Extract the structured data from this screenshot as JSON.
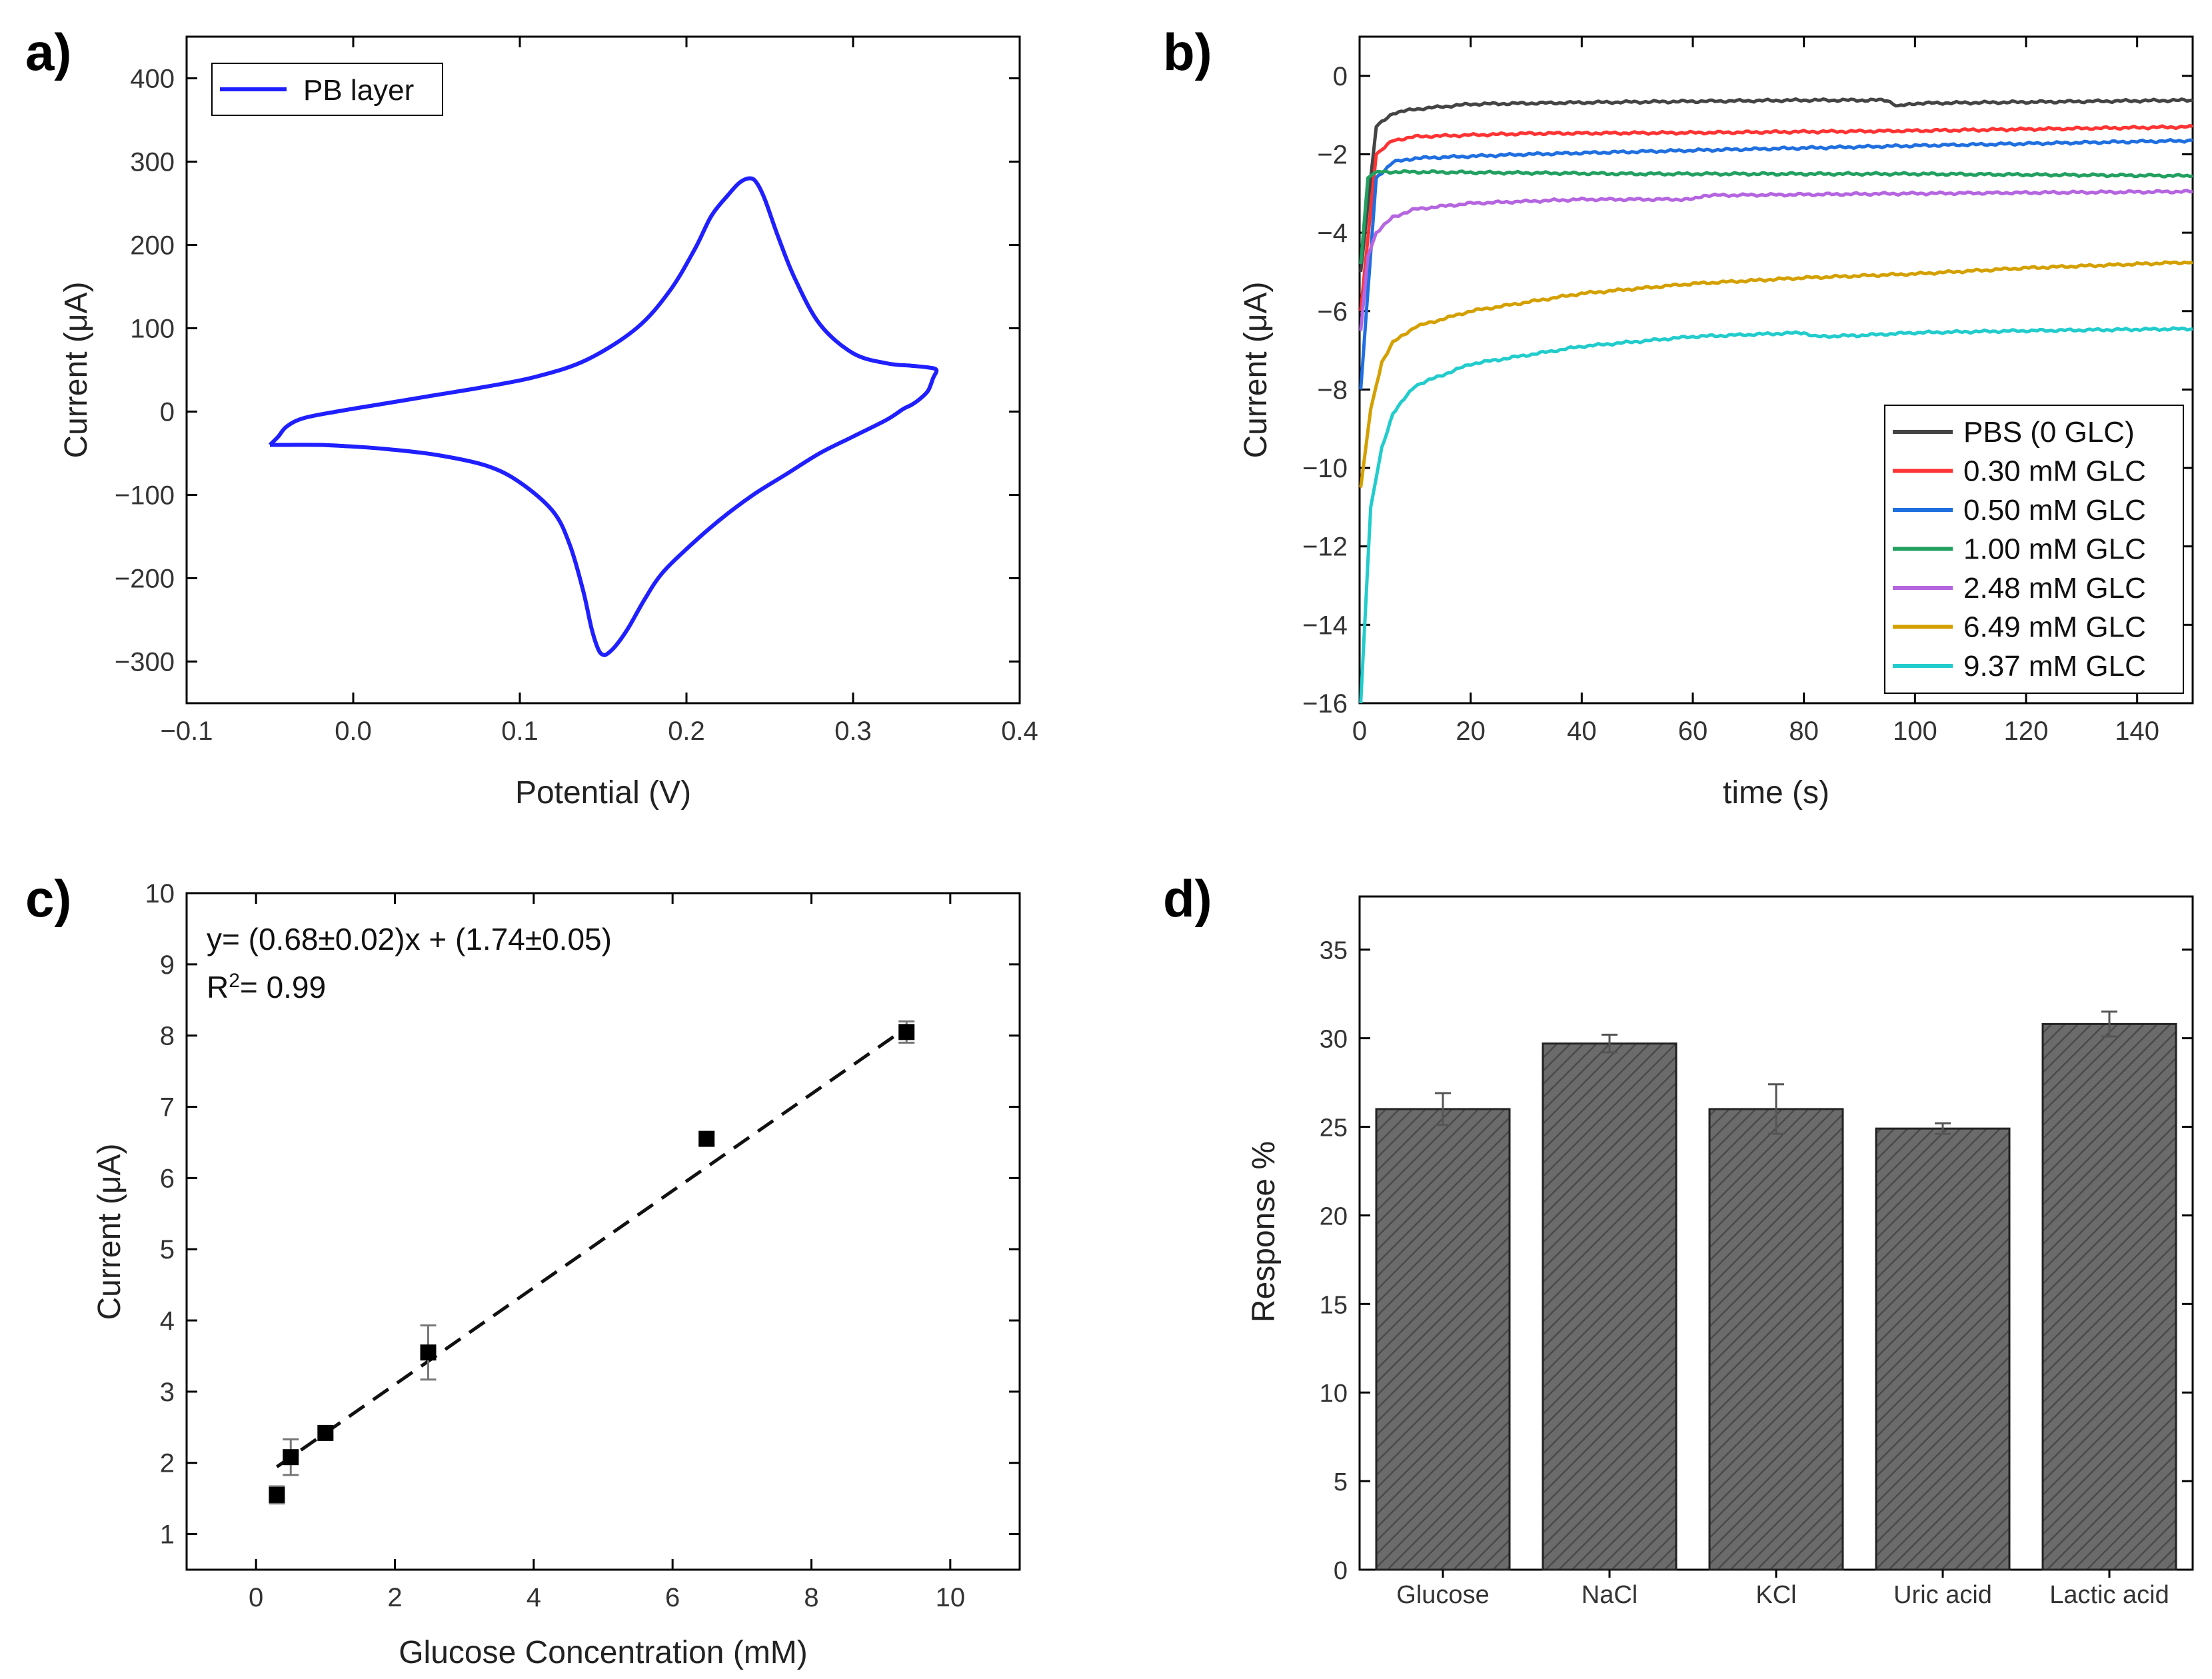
{
  "chart_data": [
    {
      "panel": "a)",
      "type": "line",
      "xlabel": "Potential (V)",
      "ylabel": "Current (μA)",
      "xlim": [
        -0.1,
        0.4
      ],
      "ylim": [
        -350,
        450
      ],
      "xticks": [
        -0.1,
        0.0,
        0.1,
        0.2,
        0.3,
        0.4
      ],
      "xtick_labels": [
        "−0.1",
        "0.0",
        "0.1",
        "0.2",
        "0.3",
        "0.4"
      ],
      "yticks": [
        -300,
        -200,
        -100,
        0,
        100,
        200,
        300,
        400
      ],
      "ytick_labels": [
        "−300",
        "−200",
        "−100",
        "0",
        "100",
        "200",
        "300",
        "400"
      ],
      "legend": "top-left",
      "series": [
        {
          "name": "PB layer",
          "color": "#1f1fff",
          "x": [
            -0.05,
            -0.045,
            -0.04,
            -0.03,
            -0.01,
            0.02,
            0.05,
            0.08,
            0.11,
            0.14,
            0.17,
            0.19,
            0.205,
            0.215,
            0.225,
            0.232,
            0.238,
            0.242,
            0.247,
            0.255,
            0.265,
            0.28,
            0.3,
            0.32,
            0.335,
            0.345,
            0.35,
            0.348,
            0.345,
            0.34,
            0.335,
            0.33,
            0.32,
            0.3,
            0.28,
            0.26,
            0.24,
            0.22,
            0.2,
            0.185,
            0.175,
            0.165,
            0.158,
            0.153,
            0.15,
            0.147,
            0.143,
            0.138,
            0.13,
            0.12,
            0.1,
            0.08,
            0.05,
            0.02,
            0.0,
            -0.02,
            -0.04,
            -0.05
          ],
          "y": [
            -40,
            -30,
            -18,
            -8,
            0,
            10,
            20,
            30,
            42,
            62,
            100,
            145,
            195,
            235,
            260,
            275,
            280,
            275,
            255,
            210,
            160,
            105,
            70,
            58,
            55,
            53,
            50,
            40,
            25,
            15,
            8,
            3,
            -10,
            -30,
            -50,
            -75,
            -100,
            -130,
            -165,
            -195,
            -225,
            -260,
            -280,
            -290,
            -292,
            -285,
            -260,
            -215,
            -160,
            -120,
            -85,
            -65,
            -52,
            -45,
            -42,
            -40,
            -40,
            -40
          ]
        }
      ]
    },
    {
      "panel": "b)",
      "type": "line",
      "xlabel": "time (s)",
      "ylabel": "Current (μA)",
      "xlim": [
        0,
        150
      ],
      "ylim": [
        -16,
        1
      ],
      "xticks": [
        0,
        20,
        40,
        60,
        80,
        100,
        120,
        140
      ],
      "xtick_labels": [
        "0",
        "20",
        "40",
        "60",
        "80",
        "100",
        "120",
        "140"
      ],
      "yticks": [
        -16,
        -14,
        -12,
        -10,
        -8,
        -6,
        -4,
        -2,
        0
      ],
      "ytick_labels": [
        "−16",
        "−14",
        "−12",
        "−10",
        "−8",
        "−6",
        "−4",
        "−2",
        "0"
      ],
      "legend": "bottom-right",
      "series": [
        {
          "name": "PBS (0 GLC)",
          "color": "#444444",
          "start": -5.0,
          "steady": [
            [
              3,
              -1.3
            ],
            [
              6,
              -0.95
            ],
            [
              10,
              -0.85
            ],
            [
              20,
              -0.72
            ],
            [
              40,
              -0.68
            ],
            [
              80,
              -0.62
            ],
            [
              95,
              -0.62
            ],
            [
              97,
              -0.78
            ],
            [
              100,
              -0.7
            ],
            [
              150,
              -0.62
            ]
          ]
        },
        {
          "name": "0.30 mM GLC",
          "color": "#ff3333",
          "start": -6.0,
          "steady": [
            [
              3,
              -2.0
            ],
            [
              6,
              -1.65
            ],
            [
              10,
              -1.55
            ],
            [
              30,
              -1.47
            ],
            [
              60,
              -1.45
            ],
            [
              100,
              -1.4
            ],
            [
              150,
              -1.3
            ]
          ]
        },
        {
          "name": "0.50 mM GLC",
          "color": "#1f6fe0",
          "start": -8.0,
          "steady": [
            [
              3,
              -2.6
            ],
            [
              6,
              -2.2
            ],
            [
              10,
              -2.1
            ],
            [
              30,
              -2.0
            ],
            [
              60,
              -1.9
            ],
            [
              100,
              -1.78
            ],
            [
              150,
              -1.65
            ]
          ]
        },
        {
          "name": "1.00 mM GLC",
          "color": "#22a060",
          "start": -4.8,
          "steady": [
            [
              1.5,
              -2.6
            ],
            [
              3,
              -2.45
            ],
            [
              10,
              -2.45
            ],
            [
              50,
              -2.5
            ],
            [
              100,
              -2.5
            ],
            [
              150,
              -2.55
            ]
          ]
        },
        {
          "name": "2.48 mM GLC",
          "color": "#b565e0",
          "start": -6.5,
          "steady": [
            [
              1.5,
              -4.6
            ],
            [
              3,
              -4.0
            ],
            [
              6,
              -3.6
            ],
            [
              10,
              -3.4
            ],
            [
              20,
              -3.25
            ],
            [
              40,
              -3.15
            ],
            [
              60,
              -3.15
            ],
            [
              62,
              -3.05
            ],
            [
              100,
              -3.0
            ],
            [
              150,
              -2.95
            ]
          ]
        },
        {
          "name": "6.49 mM GLC",
          "color": "#d4a000",
          "start": -10.5,
          "steady": [
            [
              2,
              -8.5
            ],
            [
              4,
              -7.3
            ],
            [
              6,
              -6.8
            ],
            [
              10,
              -6.4
            ],
            [
              20,
              -6.0
            ],
            [
              40,
              -5.55
            ],
            [
              60,
              -5.3
            ],
            [
              80,
              -5.15
            ],
            [
              100,
              -5.05
            ],
            [
              120,
              -4.9
            ],
            [
              150,
              -4.75
            ]
          ]
        },
        {
          "name": "9.37 mM GLC",
          "color": "#22cccc",
          "start": -16.0,
          "steady": [
            [
              2,
              -11.0
            ],
            [
              4,
              -9.5
            ],
            [
              6,
              -8.6
            ],
            [
              10,
              -7.9
            ],
            [
              20,
              -7.35
            ],
            [
              40,
              -6.9
            ],
            [
              60,
              -6.65
            ],
            [
              80,
              -6.55
            ],
            [
              82,
              -6.65
            ],
            [
              90,
              -6.62
            ],
            [
              100,
              -6.55
            ],
            [
              120,
              -6.5
            ],
            [
              150,
              -6.45
            ]
          ]
        }
      ]
    },
    {
      "panel": "c)",
      "type": "scatter",
      "xlabel": "Glucose Concentration (mM)",
      "ylabel": "Current (μA)",
      "xlim": [
        -1,
        11
      ],
      "ylim": [
        0.5,
        10
      ],
      "xticks": [
        0,
        2,
        4,
        6,
        8,
        10
      ],
      "xtick_labels": [
        "0",
        "2",
        "4",
        "6",
        "8",
        "10"
      ],
      "yticks": [
        1,
        2,
        3,
        4,
        5,
        6,
        7,
        8,
        9,
        10
      ],
      "ytick_labels": [
        "1",
        "2",
        "3",
        "4",
        "5",
        "6",
        "7",
        "8",
        "9",
        "10"
      ],
      "equation": "y= (0.68±0.02)x + (1.74±0.05)",
      "r2_prefix": "R",
      "r2_sup": "2",
      "r2_value": "= 0.99",
      "fit": {
        "slope": 0.68,
        "intercept": 1.74,
        "x_range": [
          0.3,
          9.37
        ]
      },
      "points": [
        {
          "x": 0.3,
          "y": 1.55,
          "err": 0.12
        },
        {
          "x": 0.5,
          "y": 2.08,
          "err": 0.25
        },
        {
          "x": 1.0,
          "y": 2.42,
          "err": 0.06
        },
        {
          "x": 2.48,
          "y": 3.55,
          "err": 0.38
        },
        {
          "x": 6.49,
          "y": 6.55,
          "err": 0.08
        },
        {
          "x": 9.37,
          "y": 8.05,
          "err": 0.15
        }
      ]
    },
    {
      "panel": "d)",
      "type": "bar",
      "xlabel": "",
      "ylabel": "Response %",
      "ylim": [
        0,
        38
      ],
      "yticks": [
        0,
        5,
        10,
        15,
        20,
        25,
        30,
        35
      ],
      "ytick_labels": [
        "0",
        "5",
        "10",
        "15",
        "20",
        "25",
        "30",
        "35"
      ],
      "categories": [
        "Glucose",
        "NaCl",
        "KCl",
        "Uric acid",
        "Lactic acid"
      ],
      "values": [
        26.0,
        29.7,
        26.0,
        24.9,
        30.8
      ],
      "errors": [
        0.9,
        0.5,
        1.4,
        0.3,
        0.7
      ],
      "bar_color": "#6b6b6b"
    }
  ]
}
